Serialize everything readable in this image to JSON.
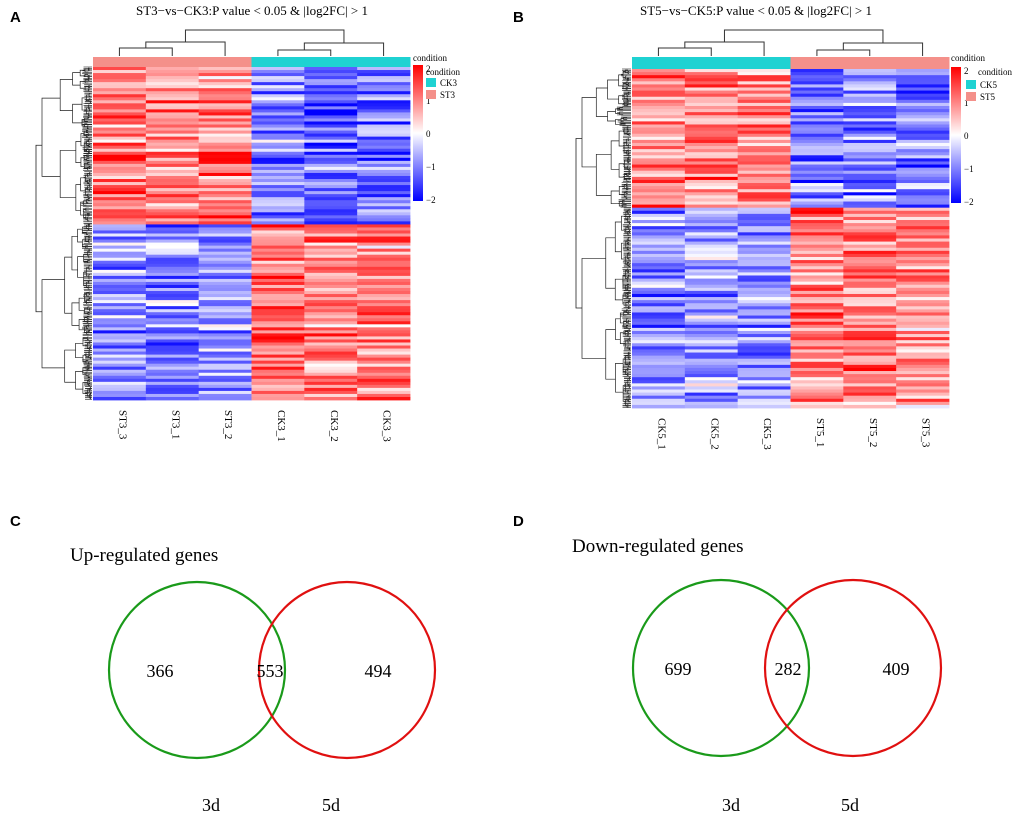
{
  "panel_labels": [
    "A",
    "B",
    "C",
    "D"
  ],
  "chart_data": [
    {
      "type": "heatmap",
      "panel": "A",
      "title": "ST3−vs−CK3:P value < 0.05 & |log2FC| > 1",
      "columns": [
        "ST3_3",
        "ST3_1",
        "ST3_2",
        "CK3_1",
        "CK3_2",
        "CK3_3"
      ],
      "column_conditions": [
        "ST3",
        "ST3",
        "ST3",
        "CK3",
        "CK3",
        "CK3"
      ],
      "legend_title_top": "condition",
      "legend": {
        "title": "condition",
        "entries": [
          {
            "label": "CK3",
            "color": "#1fd2d2"
          },
          {
            "label": "ST3",
            "color": "#f4908a"
          }
        ]
      },
      "color_scale": {
        "min": -2,
        "max": 2,
        "ticks": [
          "2",
          "1",
          "0",
          "−1",
          "−2"
        ],
        "low_color": "#0000ff",
        "mid_color": "#ffffff",
        "high_color": "#ff0000"
      },
      "row_clusters": [
        {
          "fraction": 0.47,
          "means": [
            1.1,
            0.9,
            1.0,
            -1.0,
            -1.2,
            -1.0
          ]
        },
        {
          "fraction": 0.53,
          "means": [
            -0.9,
            -1.0,
            -0.8,
            1.2,
            1.0,
            0.9
          ]
        }
      ]
    },
    {
      "type": "heatmap",
      "panel": "B",
      "title": "ST5−vs−CK5:P value < 0.05 & |log2FC| > 1",
      "columns": [
        "CK5_1",
        "CK5_2",
        "CK5_3",
        "ST5_1",
        "ST5_2",
        "ST5_3"
      ],
      "column_conditions": [
        "CK5",
        "CK5",
        "CK5",
        "ST5",
        "ST5",
        "ST5"
      ],
      "legend_title_top": "condition",
      "legend": {
        "title": "condition",
        "entries": [
          {
            "label": "CK5",
            "color": "#1fd2d2"
          },
          {
            "label": "ST5",
            "color": "#f4908a"
          }
        ]
      },
      "color_scale": {
        "min": -2,
        "max": 2,
        "ticks": [
          "2",
          "1",
          "0",
          "−1",
          "−2"
        ],
        "low_color": "#0000ff",
        "mid_color": "#ffffff",
        "high_color": "#ff0000"
      },
      "row_clusters": [
        {
          "fraction": 0.41,
          "means": [
            1.0,
            1.0,
            1.1,
            -1.1,
            -0.9,
            -1.0
          ]
        },
        {
          "fraction": 0.59,
          "means": [
            -1.0,
            -0.7,
            -0.9,
            1.0,
            1.0,
            0.9
          ]
        }
      ]
    },
    {
      "type": "venn",
      "panel": "C",
      "title": "Up-regulated genes",
      "sets": [
        {
          "label": "3d",
          "color": "#1a9a1a"
        },
        {
          "label": "5d",
          "color": "#e01010"
        }
      ],
      "values": {
        "only_a": "366",
        "both": "553",
        "only_b": "494"
      }
    },
    {
      "type": "venn",
      "panel": "D",
      "title": "Down-regulated genes",
      "sets": [
        {
          "label": "3d",
          "color": "#1a9a1a"
        },
        {
          "label": "5d",
          "color": "#e01010"
        }
      ],
      "values": {
        "only_a": "699",
        "both": "282",
        "only_b": "409"
      }
    }
  ]
}
